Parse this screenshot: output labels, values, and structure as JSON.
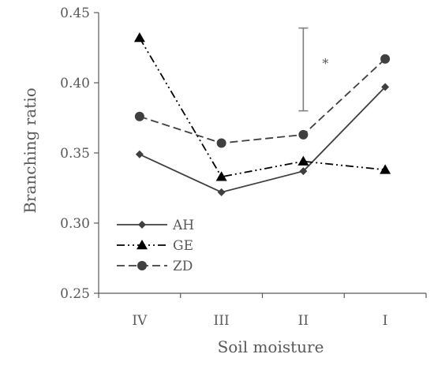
{
  "chart_data": {
    "type": "line",
    "categories": [
      "IV",
      "III",
      "II",
      "I"
    ],
    "xlabel": "Soil moisture",
    "ylabel": "Branching ratio",
    "ylim": [
      0.25,
      0.45
    ],
    "yticks": [
      "0.25",
      "0.30",
      "0.35",
      "0.40",
      "0.45"
    ],
    "grid": false,
    "legend_position": "bottom-left",
    "series": [
      {
        "name": "AH",
        "values": [
          0.349,
          0.322,
          0.337,
          0.397
        ],
        "marker": "diamond",
        "line_style": "solid",
        "color": "#3f3f3f"
      },
      {
        "name": "GE",
        "values": [
          0.432,
          0.333,
          0.344,
          0.338
        ],
        "marker": "triangle",
        "line_style": "dash-dot-dot",
        "color": "#000000"
      },
      {
        "name": "ZD",
        "values": [
          0.376,
          0.357,
          0.363,
          0.417
        ],
        "marker": "circle",
        "line_style": "dash",
        "color": "#3f3f3f"
      }
    ],
    "annotations": [
      {
        "type": "error_bar",
        "category": "II",
        "y_low": 0.38,
        "y_high": 0.439,
        "label": "*"
      }
    ]
  }
}
